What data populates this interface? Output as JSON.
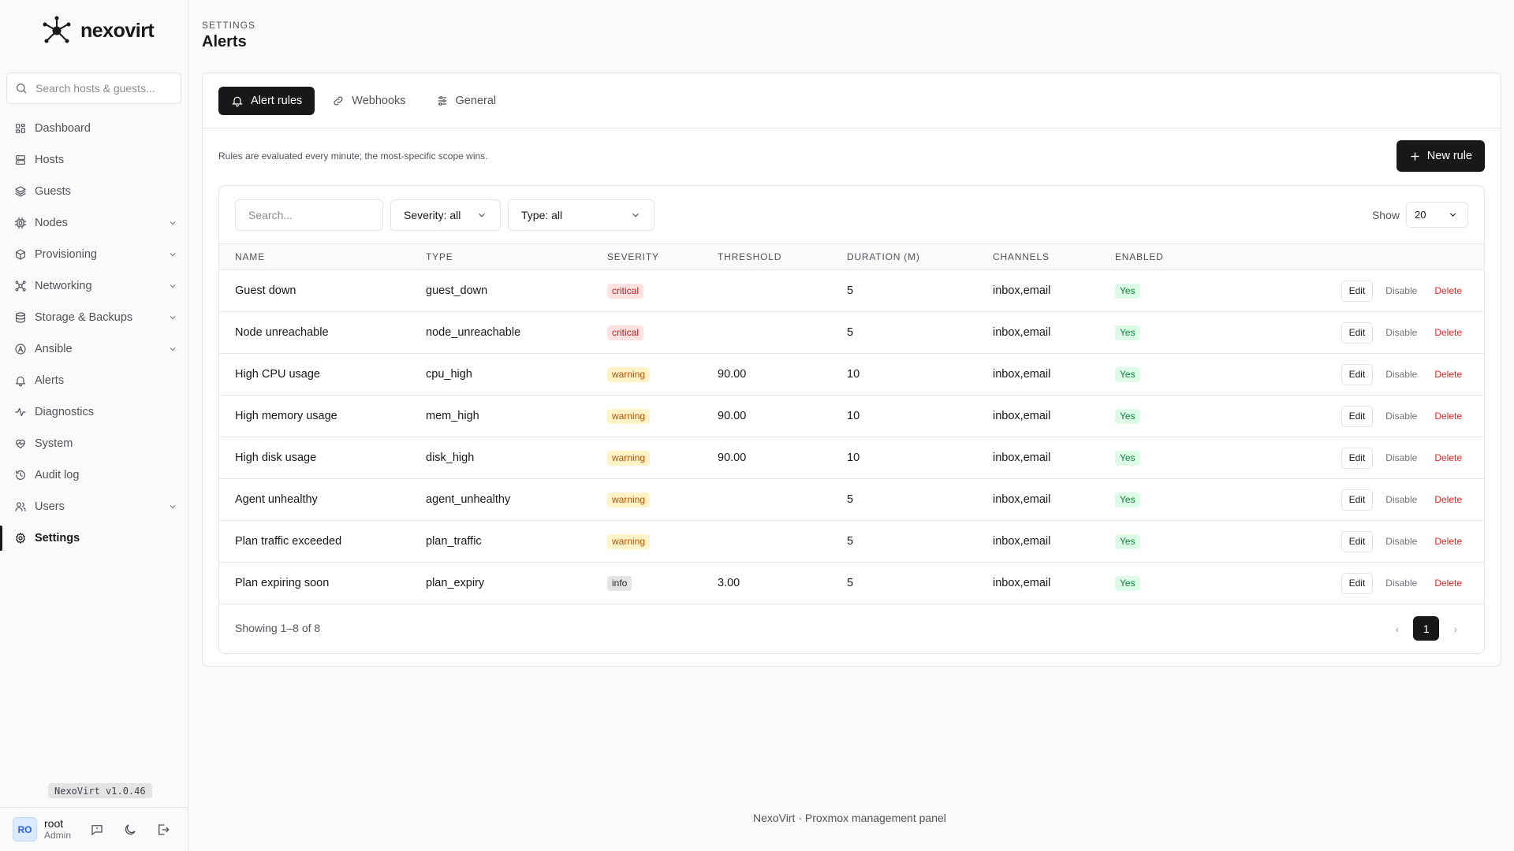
{
  "brand": {
    "name": "nexovirt"
  },
  "sidebar": {
    "search_placeholder": "Search hosts & guests...",
    "items": [
      {
        "label": "Dashboard",
        "icon": "grid-icon",
        "expandable": false,
        "active": false
      },
      {
        "label": "Hosts",
        "icon": "server-icon",
        "expandable": false,
        "active": false
      },
      {
        "label": "Guests",
        "icon": "layers-icon",
        "expandable": false,
        "active": false
      },
      {
        "label": "Nodes",
        "icon": "cpu-icon",
        "expandable": true,
        "active": false
      },
      {
        "label": "Provisioning",
        "icon": "package-icon",
        "expandable": true,
        "active": false
      },
      {
        "label": "Networking",
        "icon": "network-icon",
        "expandable": true,
        "active": false
      },
      {
        "label": "Storage & Backups",
        "icon": "database-icon",
        "expandable": true,
        "active": false
      },
      {
        "label": "Ansible",
        "icon": "ansible-icon",
        "expandable": true,
        "active": false
      },
      {
        "label": "Alerts",
        "icon": "bell-icon",
        "expandable": false,
        "active": false
      },
      {
        "label": "Diagnostics",
        "icon": "activity-icon",
        "expandable": false,
        "active": false
      },
      {
        "label": "System",
        "icon": "heart-pulse-icon",
        "expandable": false,
        "active": false
      },
      {
        "label": "Audit log",
        "icon": "history-icon",
        "expandable": false,
        "active": false
      },
      {
        "label": "Users",
        "icon": "users-icon",
        "expandable": true,
        "active": false
      },
      {
        "label": "Settings",
        "icon": "gear-icon",
        "expandable": false,
        "active": true
      }
    ],
    "version": "NexoVirt v1.0.46",
    "user": {
      "initials": "RO",
      "name": "root",
      "role": "Admin"
    }
  },
  "header": {
    "breadcrumb": "SETTINGS",
    "title": "Alerts"
  },
  "tabs": [
    {
      "label": "Alert rules",
      "icon": "bell-icon",
      "active": true
    },
    {
      "label": "Webhooks",
      "icon": "link-icon",
      "active": false
    },
    {
      "label": "General",
      "icon": "sliders-icon",
      "active": false
    }
  ],
  "hint": "Rules are evaluated every minute; the most-specific scope wins.",
  "new_rule_label": "New rule",
  "filters": {
    "search_placeholder": "Search...",
    "severity": "Severity: all",
    "type": "Type: all",
    "show_label": "Show",
    "show_value": "20"
  },
  "table": {
    "columns": [
      "NAME",
      "TYPE",
      "SEVERITY",
      "THRESHOLD",
      "DURATION (M)",
      "CHANNELS",
      "ENABLED"
    ],
    "rows": [
      {
        "name": "Guest down",
        "type": "guest_down",
        "severity": "critical",
        "threshold": "",
        "duration": "5",
        "channels": "inbox,email",
        "enabled": "Yes"
      },
      {
        "name": "Node unreachable",
        "type": "node_unreachable",
        "severity": "critical",
        "threshold": "",
        "duration": "5",
        "channels": "inbox,email",
        "enabled": "Yes"
      },
      {
        "name": "High CPU usage",
        "type": "cpu_high",
        "severity": "warning",
        "threshold": "90.00",
        "duration": "10",
        "channels": "inbox,email",
        "enabled": "Yes"
      },
      {
        "name": "High memory usage",
        "type": "mem_high",
        "severity": "warning",
        "threshold": "90.00",
        "duration": "10",
        "channels": "inbox,email",
        "enabled": "Yes"
      },
      {
        "name": "High disk usage",
        "type": "disk_high",
        "severity": "warning",
        "threshold": "90.00",
        "duration": "10",
        "channels": "inbox,email",
        "enabled": "Yes"
      },
      {
        "name": "Agent unhealthy",
        "type": "agent_unhealthy",
        "severity": "warning",
        "threshold": "",
        "duration": "5",
        "channels": "inbox,email",
        "enabled": "Yes"
      },
      {
        "name": "Plan traffic exceeded",
        "type": "plan_traffic",
        "severity": "warning",
        "threshold": "",
        "duration": "5",
        "channels": "inbox,email",
        "enabled": "Yes"
      },
      {
        "name": "Plan expiring soon",
        "type": "plan_expiry",
        "severity": "info",
        "threshold": "3.00",
        "duration": "5",
        "channels": "inbox,email",
        "enabled": "Yes"
      }
    ],
    "row_actions": {
      "edit": "Edit",
      "disable": "Disable",
      "delete": "Delete"
    },
    "showing": "Showing 1–8 of 8",
    "pager": {
      "prev": "‹",
      "page": "1",
      "next": "›"
    }
  },
  "colors": {
    "accent": "#18181b",
    "critical": "#b91c1c",
    "warning": "#b45309",
    "success": "#15803d",
    "danger": "#dc2626"
  },
  "footer": "NexoVirt · Proxmox management panel"
}
